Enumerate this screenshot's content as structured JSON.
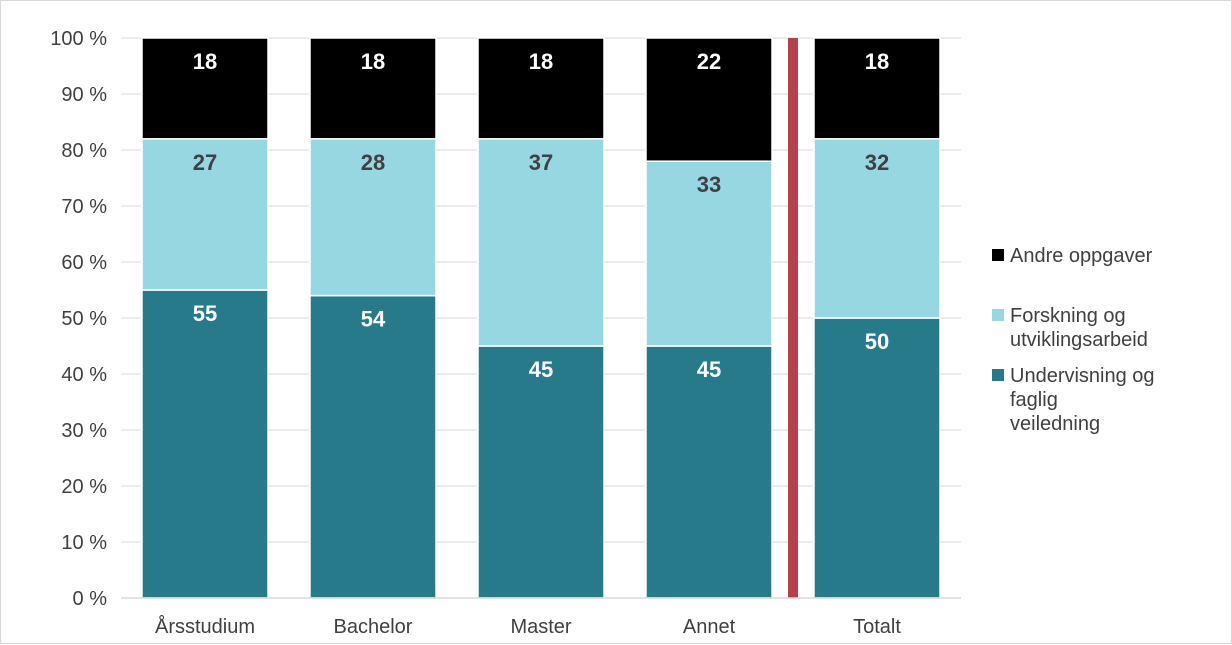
{
  "chart_data": {
    "type": "bar",
    "stacked": true,
    "percent_stacked": true,
    "categories": [
      "Årsstudium",
      "Bachelor",
      "Master",
      "Annet",
      "Totalt"
    ],
    "series": [
      {
        "name": "Undervisning og faglig veiledning",
        "values": [
          55,
          54,
          45,
          45,
          50
        ],
        "color": "#267A89",
        "label_color": "#ffffff"
      },
      {
        "name": "Forskning og utviklingsarbeid",
        "values": [
          27,
          28,
          37,
          33,
          32
        ],
        "color": "#97D7E1",
        "label_color": "#404040"
      },
      {
        "name": "Andre oppgaver",
        "values": [
          18,
          18,
          18,
          22,
          18
        ],
        "color": "#000000",
        "label_color": "#ffffff"
      }
    ],
    "y_ticks": [
      "0 %",
      "10 %",
      "20 %",
      "30 %",
      "40 %",
      "50 %",
      "60 %",
      "70 %",
      "80 %",
      "90 %",
      "100 %"
    ],
    "ylim": [
      0,
      100
    ],
    "grid": true,
    "legend_position": "right",
    "legend_order": [
      "Andre oppgaver",
      "Forskning og utviklingsarbeid",
      "Undervisning og faglig veiledning"
    ],
    "separator_color": "#B5414C",
    "separator_between": [
      "Annet",
      "Totalt"
    ]
  }
}
